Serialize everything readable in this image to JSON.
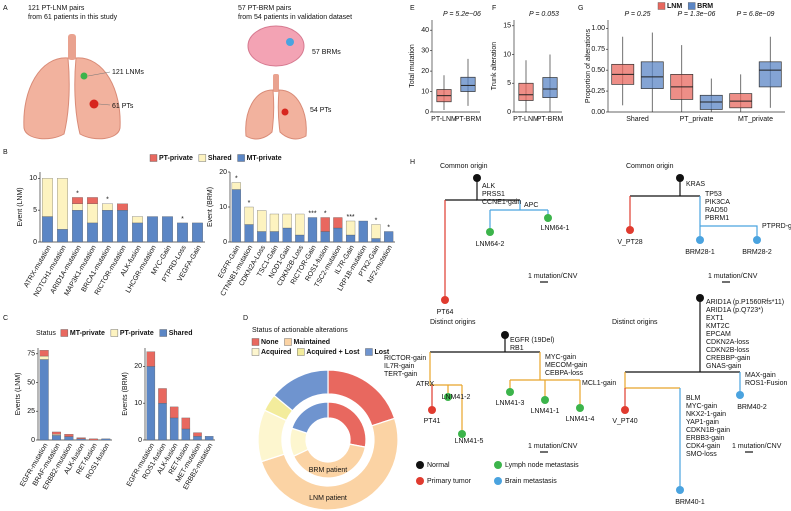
{
  "panel_labels": [
    "A",
    "B",
    "C",
    "D",
    "E",
    "F",
    "G",
    "H"
  ],
  "panel_a": {
    "lnm_title": "121 PT-LNM pairs",
    "lnm_subtitle": "from 61 patients in this study",
    "lnm_count": "121 LNMs",
    "lnm_pt_count": "61 PTs",
    "brm_title": "57 PT-BRM pairs",
    "brm_subtitle": "from 54 patients in validation dataset",
    "brm_count": "57 BRMs",
    "brm_pt_count": "54 PTs"
  },
  "chart_data": [
    {
      "type": "bar",
      "ylabel": "Event (LNM)",
      "categories": [
        "ATRX-mutation",
        "NOTCH1-mutation",
        "ARID1A-mutation",
        "MAP3K1-mutation",
        "BRCA1-mutation",
        "RICTOR-mutation",
        "ALK-fusion",
        "LHCGR-mutation",
        "MYC-Gain",
        "PTPRD-Loss",
        "VEGFA-Gain"
      ],
      "series": [
        {
          "name": "MT-private",
          "color": "#5b86c5",
          "values": [
            4,
            2,
            5,
            3,
            5,
            5,
            3,
            4,
            4,
            3,
            3
          ]
        },
        {
          "name": "Shared",
          "color": "#fdf3c0",
          "values": [
            6,
            8,
            1,
            3,
            1,
            0,
            1,
            0,
            0,
            0,
            0
          ]
        },
        {
          "name": "PT-private",
          "color": "#e8685f",
          "values": [
            0,
            0,
            1,
            1,
            0,
            1,
            0,
            0,
            0,
            0,
            0
          ]
        }
      ],
      "significance": [
        null,
        null,
        "*",
        null,
        "*",
        null,
        null,
        null,
        null,
        "*",
        null
      ],
      "ylim": [
        0,
        11
      ],
      "yticks": [
        0,
        5,
        10
      ]
    },
    {
      "type": "bar",
      "ylabel": "Event (BRM)",
      "categories": [
        "EGFR-Gain",
        "CTNNB1-mutation",
        "CDKN2A-Loss",
        "TSC1-Gain",
        "NOD1-Gain",
        "CDKN2B-Loss",
        "RICTOR-Gain",
        "ROS1-fusion",
        "TSC2-mutation",
        "IL7R-Gain",
        "LRP1B-mutation",
        "PTK2-Gain",
        "NF2-mutation"
      ],
      "series": [
        {
          "color": "#5b86c5",
          "values": [
            15,
            5,
            3,
            3,
            4,
            2,
            7,
            3,
            4,
            2,
            6,
            1,
            3
          ]
        },
        {
          "color": "#fdf3c0",
          "values": [
            2,
            5,
            6,
            5,
            4,
            6,
            0,
            0,
            0,
            4,
            0,
            4,
            0
          ]
        },
        {
          "color": "#e8685f",
          "values": [
            0,
            0,
            0,
            0,
            0,
            0,
            0,
            4,
            3,
            0,
            0,
            0,
            0
          ]
        }
      ],
      "significance": [
        "*",
        "*",
        null,
        null,
        null,
        null,
        "***",
        "*",
        null,
        "***",
        null,
        "*",
        "*"
      ],
      "ylim": [
        0,
        20
      ],
      "yticks": [
        0,
        10,
        20
      ]
    },
    {
      "type": "bar",
      "ylabel": "Events (LNM)",
      "legend_title": "Status",
      "categories": [
        "EGFR-mutation",
        "BRAF-mutation",
        "ERBB2-mutation",
        "ALK-fusion",
        "RET-fusion",
        "ROS1-fusion"
      ],
      "series": [
        {
          "name": "Shared",
          "color": "#5b86c5",
          "values": [
            70,
            4,
            3,
            1,
            0,
            1
          ]
        },
        {
          "name": "PT-private",
          "color": "#fdf3c0",
          "values": [
            3,
            1,
            0,
            0,
            0,
            0
          ]
        },
        {
          "name": "MT-private",
          "color": "#e8685f",
          "values": [
            5,
            2,
            2,
            1,
            1,
            0
          ]
        }
      ],
      "ylim": [
        0,
        80
      ],
      "yticks": [
        0,
        25,
        50,
        75
      ]
    },
    {
      "type": "bar",
      "ylabel": "Events (BRM)",
      "categories": [
        "EGFR-mutation",
        "ROS1-fusion",
        "ALK-fusion",
        "RET-fusion",
        "MET-mutation",
        "ERBB2-mutation"
      ],
      "series": [
        {
          "color": "#5b86c5",
          "values": [
            20,
            10,
            6,
            3,
            1,
            1
          ]
        },
        {
          "color": "#fdf3c0",
          "values": [
            0,
            0,
            0,
            0,
            0,
            0
          ]
        },
        {
          "color": "#e8685f",
          "values": [
            4,
            4,
            3,
            3,
            1,
            0
          ]
        }
      ],
      "ylim": [
        0,
        25
      ],
      "yticks": [
        0,
        10,
        20
      ]
    },
    {
      "type": "donut",
      "title": "Status of actionable alterations",
      "categories": [
        "None",
        "Maintained",
        "Acquired",
        "Acquired + Lost",
        "Lost"
      ],
      "colors": [
        "#e8685f",
        "#fbd3a4",
        "#fdf6cf",
        "#f3ec9c",
        "#6f94cf"
      ],
      "rings": [
        {
          "label": "LNM patient",
          "values": [
            20,
            50,
            12,
            4,
            14
          ]
        },
        {
          "label": "BRM patient",
          "values": [
            28,
            40,
            12,
            0,
            20
          ]
        }
      ]
    },
    {
      "type": "box",
      "ylabel": "Total mutation",
      "categories": [
        "PT-LNM",
        "PT-BRM"
      ],
      "colors": [
        "#e8685f",
        "#5b86c5"
      ],
      "values": [
        [
          1,
          5,
          8,
          11,
          18
        ],
        [
          3,
          10,
          13,
          17,
          26
        ]
      ],
      "annotation": "P = 5.2e−06",
      "ylim": [
        0,
        45
      ],
      "yticks": [
        0,
        10,
        20,
        30,
        40
      ]
    },
    {
      "type": "box",
      "ylabel": "Trunk alteration",
      "categories": [
        "PT-LNM",
        "PT-BRM"
      ],
      "colors": [
        "#e8685f",
        "#5b86c5"
      ],
      "values": [
        [
          0,
          2,
          3,
          5,
          9
        ],
        [
          0,
          2.5,
          4,
          6,
          10
        ]
      ],
      "annotation": "P = 0.053",
      "ylim": [
        0,
        16
      ],
      "yticks": [
        0,
        5,
        10,
        15
      ]
    },
    {
      "type": "box",
      "ylabel": "Proportion of alterations",
      "categories": [
        "Shared",
        "PT_private",
        "MT_private"
      ],
      "series": [
        {
          "name": "LNM",
          "color": "#e8685f",
          "values": [
            [
              0.08,
              0.33,
              0.45,
              0.57,
              0.9
            ],
            [
              0,
              0.15,
              0.3,
              0.45,
              0.8
            ],
            [
              0,
              0.05,
              0.13,
              0.22,
              0.45
            ]
          ]
        },
        {
          "name": "BRM",
          "color": "#5b86c5",
          "values": [
            [
              0,
              0.28,
              0.42,
              0.6,
              0.95
            ],
            [
              0,
              0.03,
              0.12,
              0.2,
              0.4
            ],
            [
              0.05,
              0.3,
              0.5,
              0.6,
              0.9
            ]
          ]
        }
      ],
      "annotations": [
        "P = 0.25",
        "P = 1.3e−06",
        "P = 6.8e−09"
      ],
      "ylim": [
        0,
        1.1
      ],
      "yticks": [
        {
          "value": 0,
          "label": "0.00"
        },
        {
          "value": 0.25,
          "label": "0.25"
        },
        {
          "value": 0.5,
          "label": "0.50"
        },
        {
          "value": 0.75,
          "label": "0.75"
        },
        {
          "value": 1,
          "label": "1.00"
        }
      ]
    }
  ],
  "panel_h": {
    "trees": [
      {
        "title": "Common origin",
        "trunk": [
          "ALK",
          "PRSS1",
          "CCNE1-gain"
        ],
        "right": [
          "APC"
        ],
        "nodes": [
          "LNM64-2",
          "LNM64-1",
          "PT64"
        ],
        "scale": "1 mutation/CNV"
      },
      {
        "title": "Common origin",
        "trunk": [
          "KRAS"
        ],
        "right": [
          "TP53",
          "PIK3CA",
          "RAD50",
          "PBRM1"
        ],
        "right_sub": [
          "PTPRD-gain"
        ],
        "nodes": [
          "V_PT28",
          "BRM28-1",
          "BRM28-2"
        ],
        "scale": "1 mutation/CNV"
      },
      {
        "title": "Distinct origins",
        "trunk": [
          "EGFR (19Del)",
          "RB1"
        ],
        "left": [
          "RICTOR-gain",
          "IL7R-gain",
          "TERT-gain"
        ],
        "left_sub": [
          "ATRX"
        ],
        "right": [
          "MYC-gain",
          "MECOM-gain",
          "CEBPA-loss"
        ],
        "nodes": [
          "PT41",
          "LNM41-2",
          "LNM41-5",
          "LNM41-3",
          "LNM41-1",
          "LNM41-4"
        ],
        "scale": "1 mutation/CNV"
      },
      {
        "title": "Distinct origins",
        "trunk": [
          "ARID1A (p.P1560Rfs*11)",
          "ARID1A (p.Q723*)",
          "EXT1",
          "KMT2C",
          "EPCAM",
          "CDKN2A-loss",
          "CDKN2B-loss",
          "CREBBP-gain",
          "GNAS-gain"
        ],
        "left": [
          "MCL1-gain"
        ],
        "left_sub": [
          "BLM",
          "MYC-gain",
          "NKX2-1-gain",
          "YAP1-gain",
          "CDKN1B-gain",
          "ERBB3-gain",
          "CDK4-gain",
          "SMO-loss"
        ],
        "right": [
          "MAX-gain",
          "ROS1-Fusion"
        ],
        "nodes": [
          "V_PT40",
          "BRM40-1",
          "BRM40-2"
        ],
        "scale": "1 mutation/CNV"
      }
    ],
    "legend": [
      "Normal",
      "Lymph node metastasis",
      "Primary tumor",
      "Brain metastasis"
    ]
  }
}
